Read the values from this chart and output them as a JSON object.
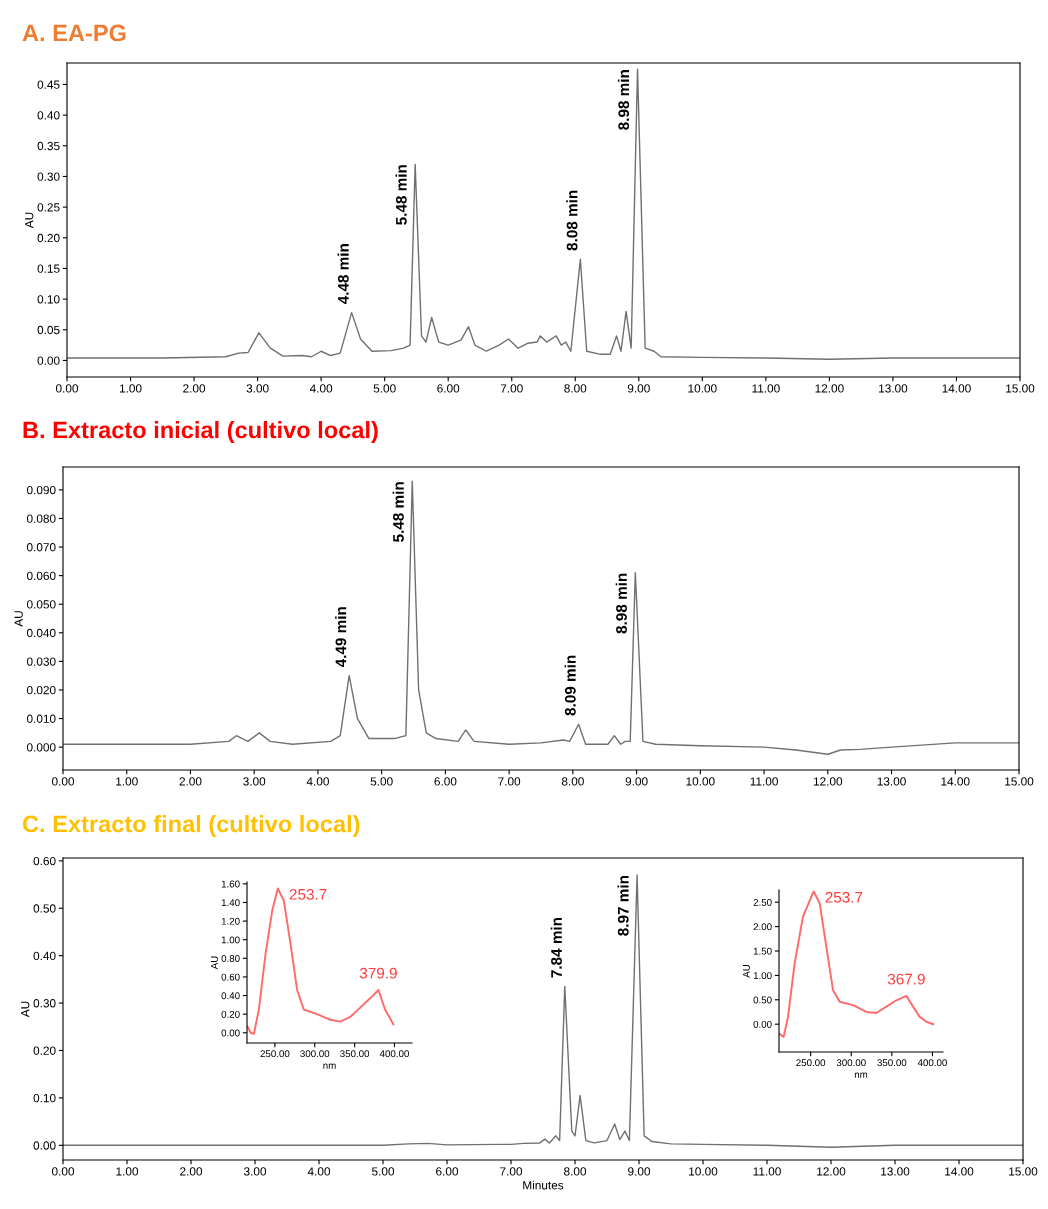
{
  "chart_data": [
    {
      "type": "line",
      "title": "A. EA-PG",
      "ylabel": "AU",
      "x": [
        0,
        1.5,
        2.5,
        2.7,
        2.85,
        3.02,
        3.2,
        3.4,
        3.7,
        3.85,
        4.0,
        4.15,
        4.3,
        4.48,
        4.62,
        4.8,
        5.1,
        5.3,
        5.4,
        5.48,
        5.58,
        5.65,
        5.74,
        5.85,
        6.0,
        6.2,
        6.32,
        6.42,
        6.6,
        6.8,
        6.95,
        7.1,
        7.25,
        7.4,
        7.45,
        7.55,
        7.7,
        7.78,
        7.85,
        7.93,
        8.08,
        8.18,
        8.4,
        8.55,
        8.65,
        8.72,
        8.8,
        8.88,
        8.98,
        9.1,
        9.24,
        9.35,
        10,
        11,
        12,
        13,
        15
      ],
      "series": [
        {
          "color": "#707070",
          "values": [
            0.004,
            0.004,
            0.006,
            0.012,
            0.013,
            0.045,
            0.02,
            0.007,
            0.008,
            0.006,
            0.015,
            0.008,
            0.012,
            0.078,
            0.035,
            0.015,
            0.016,
            0.02,
            0.025,
            0.32,
            0.04,
            0.03,
            0.07,
            0.03,
            0.025,
            0.033,
            0.055,
            0.025,
            0.015,
            0.025,
            0.035,
            0.02,
            0.028,
            0.03,
            0.04,
            0.03,
            0.04,
            0.025,
            0.03,
            0.015,
            0.165,
            0.015,
            0.01,
            0.01,
            0.04,
            0.015,
            0.08,
            0.02,
            0.475,
            0.02,
            0.015,
            0.006,
            0.005,
            0.004,
            0.002,
            0.004,
            0.004
          ]
        }
      ],
      "xlim": [
        0,
        15
      ],
      "xticks": [
        {
          "value": 0,
          "label": "0.00"
        },
        {
          "value": 1,
          "label": "1.00"
        },
        {
          "value": 2,
          "label": "2.00"
        },
        {
          "value": 3,
          "label": "3.00"
        },
        {
          "value": 4,
          "label": "4.00"
        },
        {
          "value": 5,
          "label": "5.00"
        },
        {
          "value": 6,
          "label": "6.00"
        },
        {
          "value": 7,
          "label": "7.00"
        },
        {
          "value": 8,
          "label": "8.00"
        },
        {
          "value": 9,
          "label": "9.00"
        },
        {
          "value": 10,
          "label": "10.00"
        },
        {
          "value": 11,
          "label": "11.00"
        },
        {
          "value": 12,
          "label": "12.00"
        },
        {
          "value": 13,
          "label": "13.00"
        },
        {
          "value": 14,
          "label": "14.00"
        },
        {
          "value": 15,
          "label": "15.00"
        }
      ],
      "ylim": [
        -0.027,
        0.485
      ],
      "yticks": [
        {
          "value": 0,
          "label": "0.00"
        },
        {
          "value": 0.05,
          "label": "0.05"
        },
        {
          "value": 0.1,
          "label": "0.10"
        },
        {
          "value": 0.15,
          "label": "0.15"
        },
        {
          "value": 0.2,
          "label": "0.20"
        },
        {
          "value": 0.25,
          "label": "0.25"
        },
        {
          "value": 0.3,
          "label": "0.30"
        },
        {
          "value": 0.35,
          "label": "0.35"
        },
        {
          "value": 0.4,
          "label": "0.40"
        },
        {
          "value": 0.45,
          "label": "0.45"
        }
      ],
      "annotations": [
        {
          "text": "4.48 min",
          "x": 4.48,
          "y": 0.078
        },
        {
          "text": "5.48 min",
          "x": 5.48,
          "y": 0.32
        },
        {
          "text": "8.08 min",
          "x": 8.08,
          "y": 0.165
        },
        {
          "text": "8.98 min",
          "x": 8.98,
          "y": 0.475
        }
      ],
      "grid": false,
      "legend": false
    },
    {
      "type": "line",
      "title": "B. Extracto inicial (cultivo local)",
      "ylabel": "AU",
      "x": [
        0,
        2,
        2.6,
        2.72,
        2.9,
        3.08,
        3.25,
        3.6,
        4.2,
        4.35,
        4.49,
        4.62,
        4.8,
        5.2,
        5.38,
        5.48,
        5.58,
        5.7,
        5.85,
        6.2,
        6.32,
        6.45,
        7.0,
        7.5,
        7.85,
        7.95,
        8.09,
        8.2,
        8.55,
        8.65,
        8.75,
        8.82,
        8.9,
        8.98,
        9.1,
        9.3,
        10,
        11,
        11.5,
        12.0,
        12.2,
        12.5,
        13,
        14,
        15
      ],
      "series": [
        {
          "color": "#707070",
          "values": [
            0.001,
            0.001,
            0.002,
            0.004,
            0.002,
            0.005,
            0.002,
            0.001,
            0.002,
            0.004,
            0.025,
            0.01,
            0.003,
            0.003,
            0.004,
            0.093,
            0.02,
            0.005,
            0.003,
            0.002,
            0.006,
            0.002,
            0.001,
            0.0015,
            0.0025,
            0.002,
            0.008,
            0.001,
            0.001,
            0.004,
            0.001,
            0.002,
            0.002,
            0.061,
            0.002,
            0.001,
            0.0005,
            0.0,
            -0.001,
            -0.0025,
            -0.001,
            -0.0008,
            0.0,
            0.0015,
            0.0015
          ]
        }
      ],
      "xlim": [
        0,
        15
      ],
      "xticks": [
        {
          "value": 0,
          "label": "0.00"
        },
        {
          "value": 1,
          "label": "1.00"
        },
        {
          "value": 2,
          "label": "2.00"
        },
        {
          "value": 3,
          "label": "3.00"
        },
        {
          "value": 4,
          "label": "4.00"
        },
        {
          "value": 5,
          "label": "5.00"
        },
        {
          "value": 6,
          "label": "6.00"
        },
        {
          "value": 7,
          "label": "7.00"
        },
        {
          "value": 8,
          "label": "8.00"
        },
        {
          "value": 9,
          "label": "9.00"
        },
        {
          "value": 10,
          "label": "10.00"
        },
        {
          "value": 11,
          "label": "11.00"
        },
        {
          "value": 12,
          "label": "12.00"
        },
        {
          "value": 13,
          "label": "13.00"
        },
        {
          "value": 14,
          "label": "14.00"
        },
        {
          "value": 15,
          "label": "15.00"
        }
      ],
      "ylim": [
        -0.008,
        0.098
      ],
      "yticks": [
        {
          "value": 0,
          "label": "0.000"
        },
        {
          "value": 0.01,
          "label": "0.010"
        },
        {
          "value": 0.02,
          "label": "0.020"
        },
        {
          "value": 0.03,
          "label": "0.030"
        },
        {
          "value": 0.04,
          "label": "0.040"
        },
        {
          "value": 0.05,
          "label": "0.050"
        },
        {
          "value": 0.06,
          "label": "0.060"
        },
        {
          "value": 0.07,
          "label": "0.070"
        },
        {
          "value": 0.08,
          "label": "0.080"
        },
        {
          "value": 0.09,
          "label": "0.090"
        }
      ],
      "annotations": [
        {
          "text": "4.49 min",
          "x": 4.49,
          "y": 0.025
        },
        {
          "text": "5.48 min",
          "x": 5.48,
          "y": 0.093
        },
        {
          "text": "8.09 min",
          "x": 8.09,
          "y": 0.008
        },
        {
          "text": "8.98 min",
          "x": 8.98,
          "y": 0.061
        }
      ],
      "grid": false,
      "legend": false
    },
    {
      "type": "line",
      "title": "C. Extracto final (cultivo local)",
      "ylabel": "AU",
      "xlabel": "Minutes",
      "x": [
        0,
        5.0,
        5.4,
        5.7,
        6.0,
        6.8,
        7.0,
        7.2,
        7.45,
        7.53,
        7.6,
        7.7,
        7.76,
        7.84,
        7.95,
        8.0,
        8.08,
        8.17,
        8.3,
        8.5,
        8.62,
        8.7,
        8.78,
        8.85,
        8.97,
        9.08,
        9.2,
        9.5,
        10,
        11,
        12,
        13,
        15
      ],
      "series": [
        {
          "color": "#707070",
          "values": [
            0.0,
            0.0,
            0.003,
            0.004,
            0.001,
            0.002,
            0.002,
            0.004,
            0.005,
            0.013,
            0.005,
            0.02,
            0.01,
            0.335,
            0.03,
            0.02,
            0.105,
            0.01,
            0.005,
            0.01,
            0.045,
            0.012,
            0.03,
            0.01,
            0.57,
            0.02,
            0.008,
            0.003,
            0.002,
            0.0,
            -0.004,
            0.0,
            0.0
          ]
        }
      ],
      "xlim": [
        0,
        15
      ],
      "xticks": [
        {
          "value": 0,
          "label": "0.00"
        },
        {
          "value": 1,
          "label": "1.00"
        },
        {
          "value": 2,
          "label": "2.00"
        },
        {
          "value": 3,
          "label": "3.00"
        },
        {
          "value": 4,
          "label": "4.00"
        },
        {
          "value": 5,
          "label": "5.00"
        },
        {
          "value": 6,
          "label": "6.00"
        },
        {
          "value": 7,
          "label": "7.00"
        },
        {
          "value": 8,
          "label": "8.00"
        },
        {
          "value": 9,
          "label": "9.00"
        },
        {
          "value": 10,
          "label": "10.00"
        },
        {
          "value": 11,
          "label": "11.00"
        },
        {
          "value": 12,
          "label": "12.00"
        },
        {
          "value": 13,
          "label": "13.00"
        },
        {
          "value": 14,
          "label": "14.00"
        },
        {
          "value": 15,
          "label": "15.00"
        }
      ],
      "ylim": [
        -0.031,
        0.606
      ],
      "yticks": [
        {
          "value": 0,
          "label": "0.00"
        },
        {
          "value": 0.1,
          "label": "0.10"
        },
        {
          "value": 0.2,
          "label": "0.20"
        },
        {
          "value": 0.3,
          "label": "0.30"
        },
        {
          "value": 0.4,
          "label": "0.40"
        },
        {
          "value": 0.5,
          "label": "0.50"
        },
        {
          "value": 0.6,
          "label": "0.60"
        }
      ],
      "annotations": [
        {
          "text": "7.84 min",
          "x": 7.84,
          "y": 0.335
        },
        {
          "text": "8.97 min",
          "x": 8.97,
          "y": 0.57
        }
      ],
      "grid": false,
      "legend": false
    },
    {
      "type": "line",
      "ylabel": "AU",
      "xlabel": "nm",
      "x": [
        215.4,
        219.5,
        223.7,
        229.9,
        238.3,
        246.6,
        253.7,
        261.2,
        269.5,
        277.9,
        286.2,
        302.9,
        319.5,
        332,
        344.5,
        357,
        369.5,
        379.9,
        388.2,
        398.7
      ],
      "series": [
        {
          "color": "#ff6b6b",
          "values": [
            0.07,
            0.0,
            -0.01,
            0.25,
            0.85,
            1.31,
            1.55,
            1.42,
            0.96,
            0.46,
            0.25,
            0.2,
            0.14,
            0.12,
            0.17,
            0.27,
            0.37,
            0.46,
            0.25,
            0.09
          ]
        }
      ],
      "xlim": [
        215,
        422
      ],
      "xticks": [
        {
          "value": 250,
          "label": "250.00"
        },
        {
          "value": 300,
          "label": "300.00"
        },
        {
          "value": 350,
          "label": "350.00"
        },
        {
          "value": 400,
          "label": "400.00"
        }
      ],
      "ylim": [
        -0.11,
        1.62
      ],
      "yticks": [
        {
          "value": 0,
          "label": "0.00"
        },
        {
          "value": 0.2,
          "label": "0.20"
        },
        {
          "value": 0.4,
          "label": "0.40"
        },
        {
          "value": 0.6,
          "label": "0.60"
        },
        {
          "value": 0.8,
          "label": "0.80"
        },
        {
          "value": 1.0,
          "label": "1.00"
        },
        {
          "value": 1.2,
          "label": "1.20"
        },
        {
          "value": 1.4,
          "label": "1.40"
        },
        {
          "value": 1.6,
          "label": "1.60"
        }
      ],
      "annotations": [
        {
          "text": "253.7",
          "x": 253.7,
          "y": 1.55
        },
        {
          "text": "379.9",
          "x": 379.9,
          "y": 0.46
        }
      ],
      "grid": false,
      "legend": false
    },
    {
      "type": "line",
      "ylabel": "AU",
      "xlabel": "nm",
      "x": [
        211.0,
        216.7,
        222.1,
        230.3,
        240.6,
        253.7,
        261.1,
        269.3,
        277.5,
        285.7,
        302.2,
        318.6,
        330.9,
        343.3,
        355.6,
        367.9,
        376.1,
        384.3,
        392.6,
        400.8
      ],
      "series": [
        {
          "color": "#ff6b6b",
          "values": [
            -0.19,
            -0.26,
            0.15,
            1.25,
            2.21,
            2.72,
            2.48,
            1.59,
            0.7,
            0.46,
            0.39,
            0.25,
            0.23,
            0.36,
            0.49,
            0.58,
            0.36,
            0.15,
            0.05,
            0.0
          ]
        }
      ],
      "xlim": [
        211,
        413
      ],
      "xticks": [
        {
          "value": 250,
          "label": "250.00"
        },
        {
          "value": 300,
          "label": "300.00"
        },
        {
          "value": 350,
          "label": "350.00"
        },
        {
          "value": 400,
          "label": "400.00"
        }
      ],
      "ylim": [
        -0.57,
        2.75
      ],
      "yticks": [
        {
          "value": 0,
          "label": "0.00"
        },
        {
          "value": 0.5,
          "label": "0.50"
        },
        {
          "value": 1.0,
          "label": "1.00"
        },
        {
          "value": 1.5,
          "label": "1.50"
        },
        {
          "value": 2.0,
          "label": "2.00"
        },
        {
          "value": 2.5,
          "label": "2.50"
        }
      ],
      "annotations": [
        {
          "text": "253.7",
          "x": 253.7,
          "y": 2.72
        },
        {
          "text": "367.9",
          "x": 367.9,
          "y": 0.58
        }
      ],
      "grid": false,
      "legend": false
    }
  ]
}
